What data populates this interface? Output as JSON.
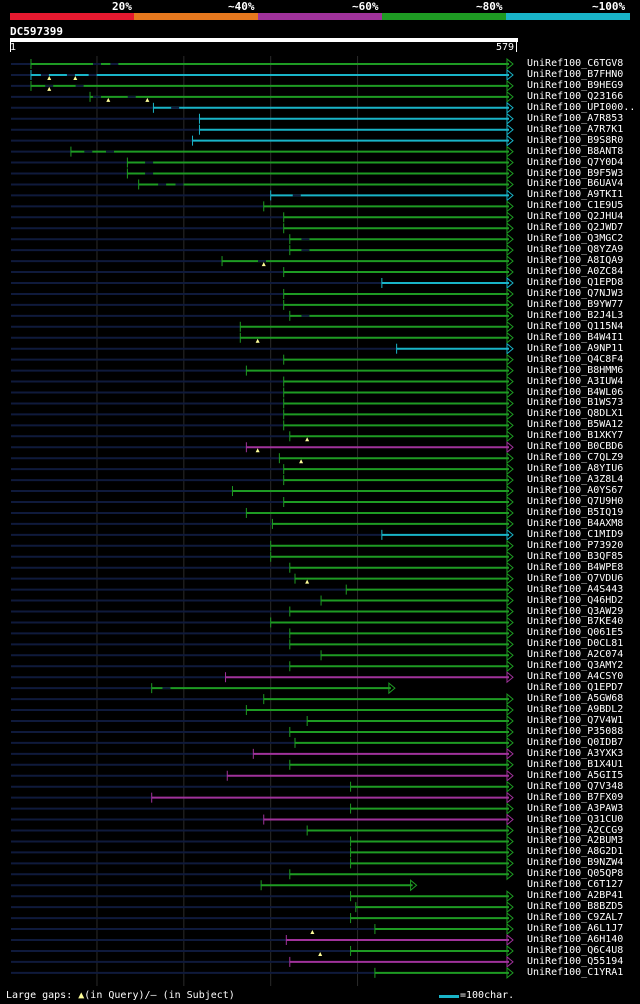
{
  "legend": {
    "colors": [
      "#e6192f",
      "#e6781e",
      "#a0329b",
      "#1e9b23",
      "#19b4c8"
    ],
    "labels": [
      "20%",
      "~40%",
      "~60%",
      "~80%",
      "~100%"
    ]
  },
  "query": {
    "id": "DC597399",
    "start": "1",
    "end": "579",
    "length": 579
  },
  "colors": {
    "green": "#1e9b23",
    "cyan": "#19b4c8",
    "magenta": "#a0329b",
    "faint": "#0f1a3c",
    "grid": "#2a2a2a",
    "gap_marker": "#ffff99"
  },
  "hits": [
    {
      "name": "UniRef100_C6TGV8",
      "start": 24,
      "end": 579,
      "color": "green",
      "gaps": [
        [
          1,
          24
        ]
      ],
      "inserts": [
        100,
        120
      ]
    },
    {
      "name": "UniRef100_B7FHN0",
      "start": 24,
      "end": 579,
      "color": "cyan",
      "gaps": [
        [
          1,
          24
        ]
      ],
      "inserts": [
        40,
        70,
        95
      ]
    },
    {
      "name": "UniRef100_B9HEG9",
      "start": 24,
      "end": 579,
      "color": "green",
      "gaps": [
        [
          1,
          24
        ]
      ],
      "inserts": [
        45,
        80
      ]
    },
    {
      "name": "UniRef100_Q23166",
      "start": 92,
      "end": 579,
      "color": "green",
      "gaps": [
        [
          1,
          92
        ]
      ],
      "inserts": [
        100,
        140
      ]
    },
    {
      "name": "UniRef100_UPI000..",
      "start": 165,
      "end": 579,
      "color": "cyan",
      "gaps": [
        [
          1,
          165
        ]
      ],
      "inserts": [
        190
      ]
    },
    {
      "name": "UniRef100_A7R853",
      "start": 218,
      "end": 579,
      "color": "cyan",
      "gaps": [
        [
          1,
          218
        ]
      ],
      "inserts": []
    },
    {
      "name": "UniRef100_A7R7K1",
      "start": 218,
      "end": 579,
      "color": "cyan",
      "gaps": [
        [
          1,
          218
        ]
      ],
      "inserts": []
    },
    {
      "name": "UniRef100_B9S8R0",
      "start": 210,
      "end": 579,
      "color": "cyan",
      "gaps": [
        [
          1,
          210
        ]
      ],
      "inserts": []
    },
    {
      "name": "UniRef100_B8ANT8",
      "start": 70,
      "end": 579,
      "color": "green",
      "gaps": [
        [
          1,
          70
        ]
      ],
      "inserts": [
        90,
        115
      ]
    },
    {
      "name": "UniRef100_Q7Y0D4",
      "start": 135,
      "end": 579,
      "color": "green",
      "gaps": [
        [
          1,
          135
        ]
      ],
      "inserts": [
        160
      ]
    },
    {
      "name": "UniRef100_B9F5W3",
      "start": 135,
      "end": 579,
      "color": "green",
      "gaps": [
        [
          1,
          135
        ]
      ],
      "inserts": [
        160
      ]
    },
    {
      "name": "UniRef100_B6UAV4",
      "start": 148,
      "end": 579,
      "color": "green",
      "gaps": [
        [
          1,
          148
        ]
      ],
      "inserts": [
        175,
        195
      ]
    },
    {
      "name": "UniRef100_A9TKI1",
      "start": 300,
      "end": 579,
      "color": "cyan",
      "gaps": [
        [
          1,
          300
        ]
      ],
      "inserts": [
        330
      ]
    },
    {
      "name": "UniRef100_C1E9U5",
      "start": 292,
      "end": 579,
      "color": "green",
      "gaps": [
        [
          1,
          292
        ]
      ],
      "inserts": []
    },
    {
      "name": "UniRef100_Q2JHU4",
      "start": 315,
      "end": 579,
      "color": "green",
      "gaps": [
        [
          1,
          315
        ]
      ],
      "inserts": []
    },
    {
      "name": "UniRef100_Q2JWD7",
      "start": 315,
      "end": 579,
      "color": "green",
      "gaps": [
        [
          1,
          315
        ]
      ],
      "inserts": []
    },
    {
      "name": "UniRef100_Q3MGC2",
      "start": 322,
      "end": 579,
      "color": "green",
      "gaps": [
        [
          1,
          322
        ]
      ],
      "inserts": [
        340
      ]
    },
    {
      "name": "UniRef100_Q8YZA9",
      "start": 322,
      "end": 579,
      "color": "green",
      "gaps": [
        [
          1,
          322
        ]
      ],
      "inserts": [
        340
      ]
    },
    {
      "name": "UniRef100_A8IQA9",
      "start": 244,
      "end": 579,
      "color": "green",
      "gaps": [
        [
          1,
          244
        ]
      ],
      "inserts": [
        290
      ]
    },
    {
      "name": "UniRef100_A0ZC84",
      "start": 315,
      "end": 579,
      "color": "green",
      "gaps": [
        [
          1,
          315
        ]
      ],
      "inserts": []
    },
    {
      "name": "UniRef100_Q1EPD8",
      "start": 428,
      "end": 579,
      "color": "cyan",
      "gaps": [
        [
          1,
          428
        ]
      ],
      "inserts": []
    },
    {
      "name": "UniRef100_Q7NJW3",
      "start": 315,
      "end": 579,
      "color": "green",
      "gaps": [
        [
          1,
          315
        ]
      ],
      "inserts": []
    },
    {
      "name": "UniRef100_B9YW77",
      "start": 315,
      "end": 579,
      "color": "green",
      "gaps": [
        [
          1,
          315
        ]
      ],
      "inserts": []
    },
    {
      "name": "UniRef100_B2J4L3",
      "start": 322,
      "end": 579,
      "color": "green",
      "gaps": [
        [
          1,
          322
        ]
      ],
      "inserts": [
        340
      ]
    },
    {
      "name": "UniRef100_Q115N4",
      "start": 265,
      "end": 579,
      "color": "green",
      "gaps": [
        [
          1,
          265
        ]
      ],
      "inserts": []
    },
    {
      "name": "UniRef100_B4W4I1",
      "start": 265,
      "end": 579,
      "color": "green",
      "gaps": [
        [
          1,
          265
        ]
      ],
      "inserts": []
    },
    {
      "name": "UniRef100_A9NP11",
      "start": 445,
      "end": 579,
      "color": "cyan",
      "gaps": [
        [
          1,
          445
        ]
      ],
      "inserts": []
    },
    {
      "name": "UniRef100_Q4C8F4",
      "start": 315,
      "end": 579,
      "color": "green",
      "gaps": [
        [
          1,
          315
        ]
      ],
      "inserts": []
    },
    {
      "name": "UniRef100_B8HMM6",
      "start": 272,
      "end": 579,
      "color": "green",
      "gaps": [
        [
          1,
          272
        ]
      ],
      "inserts": []
    },
    {
      "name": "UniRef100_A3IUW4",
      "start": 315,
      "end": 579,
      "color": "green",
      "gaps": [
        [
          1,
          315
        ]
      ],
      "inserts": []
    },
    {
      "name": "UniRef100_B4WL06",
      "start": 315,
      "end": 579,
      "color": "green",
      "gaps": [
        [
          1,
          315
        ]
      ],
      "inserts": []
    },
    {
      "name": "UniRef100_B1WS73",
      "start": 315,
      "end": 579,
      "color": "green",
      "gaps": [
        [
          1,
          315
        ]
      ],
      "inserts": []
    },
    {
      "name": "UniRef100_Q8DLX1",
      "start": 315,
      "end": 579,
      "color": "green",
      "gaps": [
        [
          1,
          315
        ]
      ],
      "inserts": []
    },
    {
      "name": "UniRef100_B5WA12",
      "start": 315,
      "end": 579,
      "color": "green",
      "gaps": [
        [
          1,
          315
        ]
      ],
      "inserts": []
    },
    {
      "name": "UniRef100_B1XKY7",
      "start": 322,
      "end": 579,
      "color": "green",
      "gaps": [
        [
          1,
          322
        ]
      ],
      "inserts": []
    },
    {
      "name": "UniRef100_B0CBD6",
      "start": 272,
      "end": 579,
      "color": "magenta",
      "gaps": [
        [
          1,
          272
        ]
      ],
      "inserts": []
    },
    {
      "name": "UniRef100_C7QLZ9",
      "start": 310,
      "end": 579,
      "color": "green",
      "gaps": [
        [
          1,
          310
        ]
      ],
      "inserts": []
    },
    {
      "name": "UniRef100_A8YIU6",
      "start": 315,
      "end": 579,
      "color": "green",
      "gaps": [
        [
          1,
          315
        ]
      ],
      "inserts": []
    },
    {
      "name": "UniRef100_A3Z8L4",
      "start": 315,
      "end": 579,
      "color": "green",
      "gaps": [
        [
          1,
          315
        ]
      ],
      "inserts": []
    },
    {
      "name": "UniRef100_A0YS67",
      "start": 256,
      "end": 579,
      "color": "green",
      "gaps": [
        [
          1,
          256
        ]
      ],
      "inserts": []
    },
    {
      "name": "UniRef100_Q7U9H0",
      "start": 315,
      "end": 579,
      "color": "green",
      "gaps": [
        [
          1,
          315
        ]
      ],
      "inserts": []
    },
    {
      "name": "UniRef100_B5IQ19",
      "start": 272,
      "end": 579,
      "color": "green",
      "gaps": [
        [
          1,
          272
        ]
      ],
      "inserts": []
    },
    {
      "name": "UniRef100_B4AXM8",
      "start": 302,
      "end": 579,
      "color": "green",
      "gaps": [
        [
          1,
          302
        ]
      ],
      "inserts": []
    },
    {
      "name": "UniRef100_C1MID9",
      "start": 428,
      "end": 579,
      "color": "cyan",
      "gaps": [
        [
          1,
          428
        ]
      ],
      "inserts": []
    },
    {
      "name": "UniRef100_P73920",
      "start": 300,
      "end": 579,
      "color": "green",
      "gaps": [
        [
          1,
          300
        ]
      ],
      "inserts": []
    },
    {
      "name": "UniRef100_B3QF85",
      "start": 300,
      "end": 579,
      "color": "green",
      "gaps": [
        [
          1,
          300
        ]
      ],
      "inserts": []
    },
    {
      "name": "UniRef100_B4WPE8",
      "start": 322,
      "end": 579,
      "color": "green",
      "gaps": [
        [
          1,
          322
        ]
      ],
      "inserts": []
    },
    {
      "name": "UniRef100_Q7VDU6",
      "start": 328,
      "end": 579,
      "color": "green",
      "gaps": [
        [
          1,
          328
        ]
      ],
      "inserts": []
    },
    {
      "name": "UniRef100_A4S443",
      "start": 387,
      "end": 579,
      "color": "green",
      "gaps": [
        [
          1,
          387
        ]
      ],
      "inserts": []
    },
    {
      "name": "UniRef100_Q46HD2",
      "start": 358,
      "end": 579,
      "color": "green",
      "gaps": [
        [
          1,
          358
        ]
      ],
      "inserts": []
    },
    {
      "name": "UniRef100_Q3AW29",
      "start": 322,
      "end": 579,
      "color": "green",
      "gaps": [
        [
          1,
          322
        ]
      ],
      "inserts": []
    },
    {
      "name": "UniRef100_B7KE40",
      "start": 300,
      "end": 579,
      "color": "green",
      "gaps": [
        [
          1,
          300
        ]
      ],
      "inserts": []
    },
    {
      "name": "UniRef100_Q061E5",
      "start": 322,
      "end": 579,
      "color": "green",
      "gaps": [
        [
          1,
          322
        ]
      ],
      "inserts": []
    },
    {
      "name": "UniRef100_D0CL81",
      "start": 322,
      "end": 579,
      "color": "green",
      "gaps": [
        [
          1,
          322
        ]
      ],
      "inserts": []
    },
    {
      "name": "UniRef100_A2C074",
      "start": 358,
      "end": 579,
      "color": "green",
      "gaps": [
        [
          1,
          358
        ]
      ],
      "inserts": []
    },
    {
      "name": "UniRef100_Q3AMY2",
      "start": 322,
      "end": 579,
      "color": "green",
      "gaps": [
        [
          1,
          322
        ]
      ],
      "inserts": []
    },
    {
      "name": "UniRef100_A4CSY0",
      "start": 248,
      "end": 579,
      "color": "magenta",
      "gaps": [
        [
          1,
          248
        ]
      ],
      "inserts": []
    },
    {
      "name": "UniRef100_Q1EPD7",
      "start": 163,
      "end": 443,
      "color": "green",
      "gaps": [
        [
          1,
          163
        ]
      ],
      "inserts": [
        180
      ]
    },
    {
      "name": "UniRef100_A5GW68",
      "start": 292,
      "end": 579,
      "color": "green",
      "gaps": [
        [
          1,
          292
        ]
      ],
      "inserts": []
    },
    {
      "name": "UniRef100_A9BDL2",
      "start": 272,
      "end": 579,
      "color": "green",
      "gaps": [
        [
          1,
          272
        ]
      ],
      "inserts": []
    },
    {
      "name": "UniRef100_Q7V4W1",
      "start": 342,
      "end": 579,
      "color": "green",
      "gaps": [
        [
          1,
          342
        ]
      ],
      "inserts": []
    },
    {
      "name": "UniRef100_P35088",
      "start": 322,
      "end": 579,
      "color": "green",
      "gaps": [
        [
          1,
          322
        ]
      ],
      "inserts": []
    },
    {
      "name": "UniRef100_Q0IDB7",
      "start": 328,
      "end": 579,
      "color": "green",
      "gaps": [
        [
          1,
          328
        ]
      ],
      "inserts": []
    },
    {
      "name": "UniRef100_A3YXK3",
      "start": 280,
      "end": 579,
      "color": "magenta",
      "gaps": [
        [
          1,
          280
        ]
      ],
      "inserts": []
    },
    {
      "name": "UniRef100_B1X4U1",
      "start": 322,
      "end": 579,
      "color": "green",
      "gaps": [
        [
          1,
          322
        ]
      ],
      "inserts": []
    },
    {
      "name": "UniRef100_A5GII5",
      "start": 250,
      "end": 579,
      "color": "magenta",
      "gaps": [
        [
          1,
          250
        ]
      ],
      "inserts": []
    },
    {
      "name": "UniRef100_Q7V348",
      "start": 392,
      "end": 579,
      "color": "green",
      "gaps": [
        [
          1,
          392
        ]
      ],
      "inserts": []
    },
    {
      "name": "UniRef100_B7FX09",
      "start": 163,
      "end": 579,
      "color": "magenta",
      "gaps": [
        [
          1,
          163
        ]
      ],
      "inserts": []
    },
    {
      "name": "UniRef100_A3PAW3",
      "start": 392,
      "end": 579,
      "color": "green",
      "gaps": [
        [
          1,
          392
        ]
      ],
      "inserts": []
    },
    {
      "name": "UniRef100_Q31CU0",
      "start": 292,
      "end": 579,
      "color": "magenta",
      "gaps": [
        [
          1,
          292
        ]
      ],
      "inserts": []
    },
    {
      "name": "UniRef100_A2CCG9",
      "start": 342,
      "end": 579,
      "color": "green",
      "gaps": [
        [
          1,
          342
        ]
      ],
      "inserts": []
    },
    {
      "name": "UniRef100_A2BUM3",
      "start": 392,
      "end": 579,
      "color": "green",
      "gaps": [
        [
          1,
          392
        ]
      ],
      "inserts": []
    },
    {
      "name": "UniRef100_A8G2D1",
      "start": 392,
      "end": 579,
      "color": "green",
      "gaps": [
        [
          1,
          392
        ]
      ],
      "inserts": []
    },
    {
      "name": "UniRef100_B9NZW4",
      "start": 392,
      "end": 579,
      "color": "green",
      "gaps": [
        [
          1,
          392
        ]
      ],
      "inserts": []
    },
    {
      "name": "UniRef100_Q05QP8",
      "start": 322,
      "end": 579,
      "color": "green",
      "gaps": [
        [
          1,
          322
        ]
      ],
      "inserts": []
    },
    {
      "name": "UniRef100_C6T127",
      "start": 289,
      "end": 468,
      "color": "green",
      "gaps": [
        [
          1,
          289
        ]
      ],
      "inserts": []
    },
    {
      "name": "UniRef100_A2BP41",
      "start": 392,
      "end": 579,
      "color": "green",
      "gaps": [
        [
          1,
          392
        ]
      ],
      "inserts": []
    },
    {
      "name": "UniRef100_B8BZD5",
      "start": 398,
      "end": 579,
      "color": "green",
      "gaps": [
        [
          1,
          398
        ]
      ],
      "inserts": []
    },
    {
      "name": "UniRef100_C9ZAL7",
      "start": 392,
      "end": 579,
      "color": "green",
      "gaps": [
        [
          1,
          392
        ]
      ],
      "inserts": []
    },
    {
      "name": "UniRef100_A6L1J7",
      "start": 420,
      "end": 579,
      "color": "green",
      "gaps": [
        [
          1,
          420
        ]
      ],
      "inserts": []
    },
    {
      "name": "UniRef100_A6H140",
      "start": 318,
      "end": 579,
      "color": "magenta",
      "gaps": [
        [
          1,
          318
        ]
      ],
      "inserts": []
    },
    {
      "name": "UniRef100_Q6C4U8",
      "start": 392,
      "end": 579,
      "color": "green",
      "gaps": [
        [
          1,
          392
        ]
      ],
      "inserts": []
    },
    {
      "name": "UniRef100_Q55194",
      "start": 322,
      "end": 579,
      "color": "magenta",
      "gaps": [
        [
          1,
          322
        ]
      ],
      "inserts": []
    },
    {
      "name": "UniRef100_C1YRA1",
      "start": 420,
      "end": 579,
      "color": "green",
      "gaps": [
        [
          1,
          420
        ]
      ],
      "inserts": []
    }
  ],
  "query_gaps": [
    {
      "row": 1,
      "pos": 45
    },
    {
      "row": 1,
      "pos": 75
    },
    {
      "row": 2,
      "pos": 45
    },
    {
      "row": 3,
      "pos": 113
    },
    {
      "row": 3,
      "pos": 158
    },
    {
      "row": 18,
      "pos": 292
    },
    {
      "row": 25,
      "pos": 285
    },
    {
      "row": 34,
      "pos": 342
    },
    {
      "row": 35,
      "pos": 285
    },
    {
      "row": 36,
      "pos": 335
    },
    {
      "row": 47,
      "pos": 342
    },
    {
      "row": 79,
      "pos": 348
    },
    {
      "row": 81,
      "pos": 357
    }
  ],
  "footer": {
    "large_gaps_prefix": "Large gaps: ",
    "large_gaps_query": "(in Query)/",
    "large_gaps_subject_dash": "–",
    "large_gaps_subject": " (in Subject)",
    "scale_label": "=100char."
  }
}
